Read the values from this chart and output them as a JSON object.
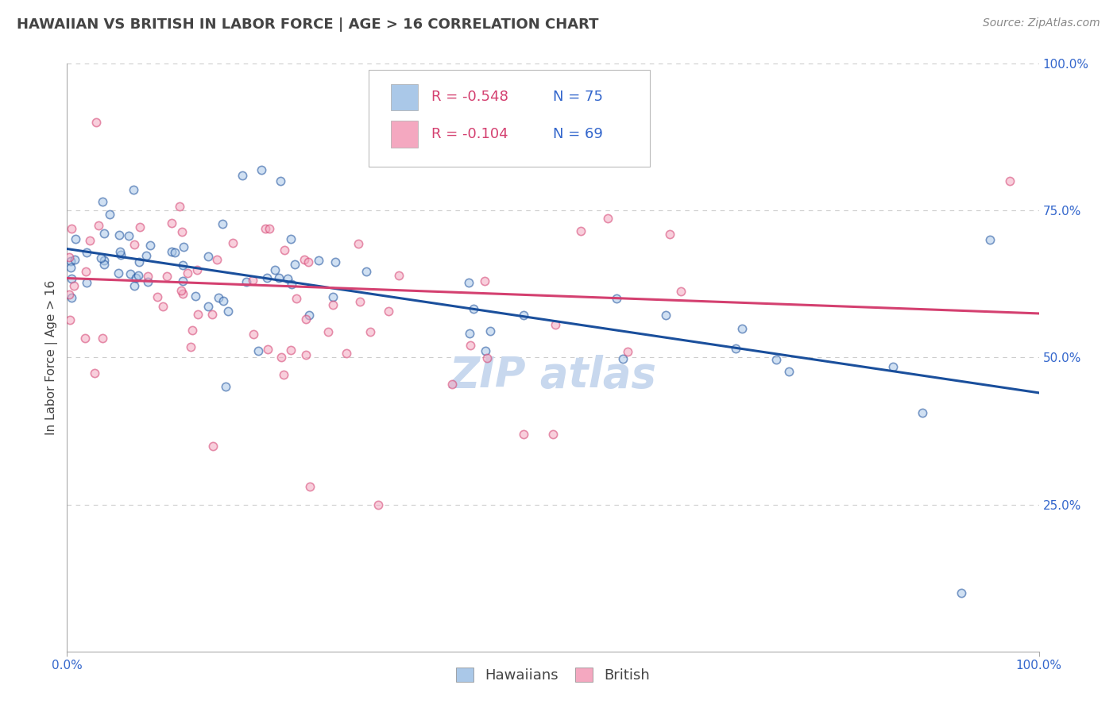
{
  "title": "HAWAIIAN VS BRITISH IN LABOR FORCE | AGE > 16 CORRELATION CHART",
  "source": "Source: ZipAtlas.com",
  "ylabel": "In Labor Force | Age > 16",
  "legend_hawaiians": "Hawaiians",
  "legend_british": "British",
  "r_hawaiian": -0.548,
  "n_hawaiian": 75,
  "r_british": -0.104,
  "n_british": 69,
  "hawaiian_color": "#aac8e8",
  "hawaiian_line_color": "#1a4f9c",
  "british_color": "#f4a8c0",
  "british_line_color": "#d44070",
  "watermark_color": "#c8d8ee",
  "background_color": "#ffffff",
  "grid_color": "#cccccc",
  "title_color": "#444444",
  "axis_label_color": "#3366cc",
  "xlim": [
    0.0,
    1.0
  ],
  "ylim": [
    0.0,
    1.0
  ],
  "ytick_positions": [
    0.25,
    0.5,
    0.75,
    1.0
  ],
  "ytick_labels": [
    "25.0%",
    "50.0%",
    "75.0%",
    "100.0%"
  ],
  "h_line_x0": 0.0,
  "h_line_y0": 0.685,
  "h_line_x1": 1.0,
  "h_line_y1": 0.44,
  "b_line_x0": 0.0,
  "b_line_y0": 0.635,
  "b_line_x1": 1.0,
  "b_line_y1": 0.575,
  "title_fontsize": 13,
  "source_fontsize": 10,
  "ylabel_fontsize": 11,
  "tick_fontsize": 11,
  "legend_fontsize": 13,
  "marker_size": 55,
  "line_width": 2.2,
  "marker_alpha": 0.55,
  "marker_lw": 1.2
}
